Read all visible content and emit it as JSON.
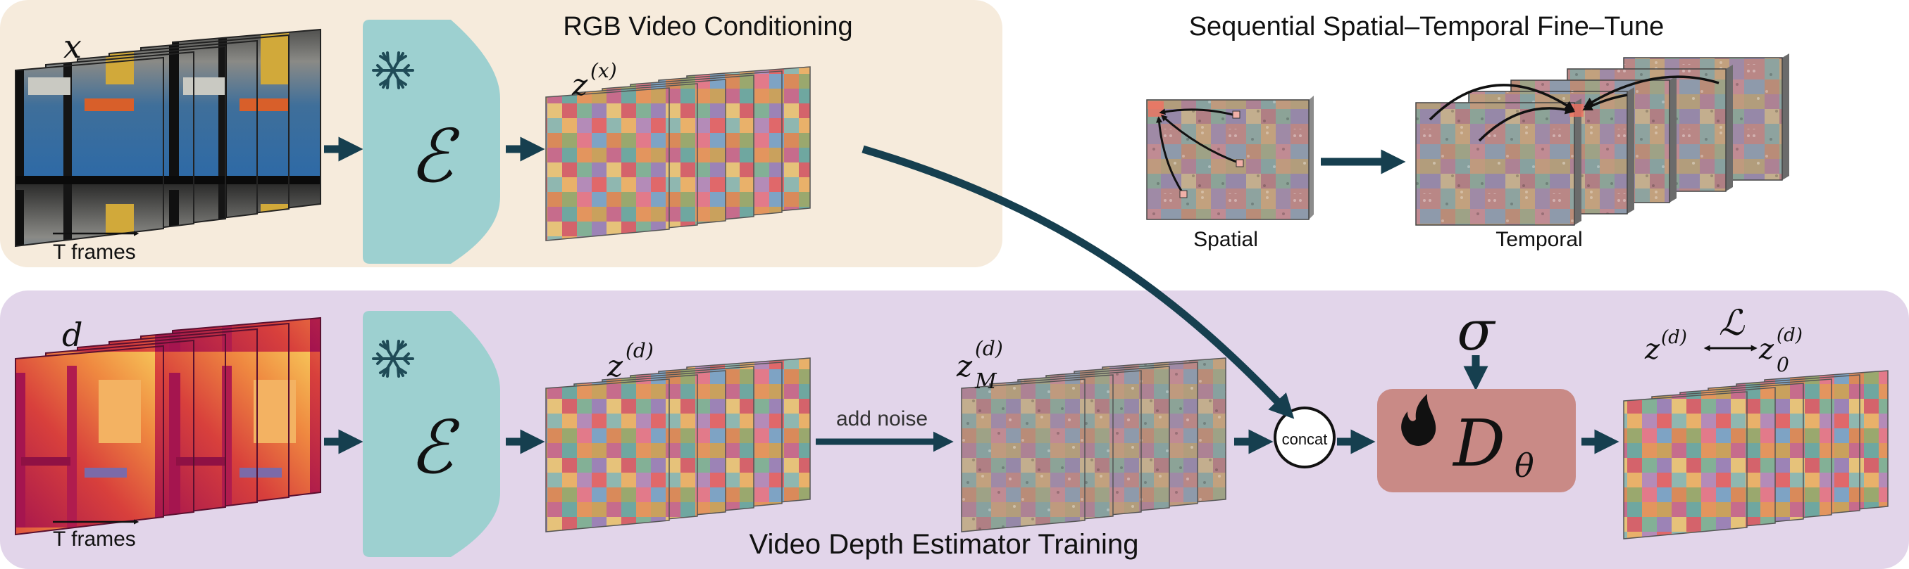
{
  "colors": {
    "rgb_panel_bg": "#f6ebdc",
    "depth_panel_bg": "#e2d5ea",
    "encoder": "#9dd0d0",
    "denoiser": "#c98a86",
    "arrow": "#163f4f",
    "temporal_arrow": "#111111"
  },
  "icons": {
    "frozen": "snowflake-icon",
    "trainable": "flame-icon"
  },
  "rgb_panel": {
    "title": "RGB Video Conditioning",
    "input_symbol": "x",
    "frames_label": "T frames",
    "encoder_symbol": "ℰ",
    "latent_symbol": "z",
    "latent_superscript": "(x)"
  },
  "finetune": {
    "title": "Sequential Spatial–Temporal Fine–Tune",
    "spatial_label": "Spatial",
    "temporal_label": "Temporal"
  },
  "depth_panel": {
    "title": "Video Depth Estimator Training",
    "input_symbol": "d",
    "frames_label": "T frames",
    "encoder_symbol": "ℰ",
    "latent_symbol": "z",
    "latent_superscript": "(d)",
    "noise_label": "add noise",
    "noisy_latent_symbol": "z",
    "noisy_latent_superscript": "(d)",
    "noisy_latent_subscript": "M",
    "concat_label": "concat",
    "sigma_symbol": "σ",
    "denoiser_symbol": "D",
    "denoiser_subscript": "θ",
    "loss_symbol": "ℒ",
    "loss_left_symbol": "z",
    "loss_left_superscript": "(d)",
    "loss_right_symbol": "z",
    "loss_right_superscript": "(d)",
    "loss_right_subscript": "0"
  }
}
